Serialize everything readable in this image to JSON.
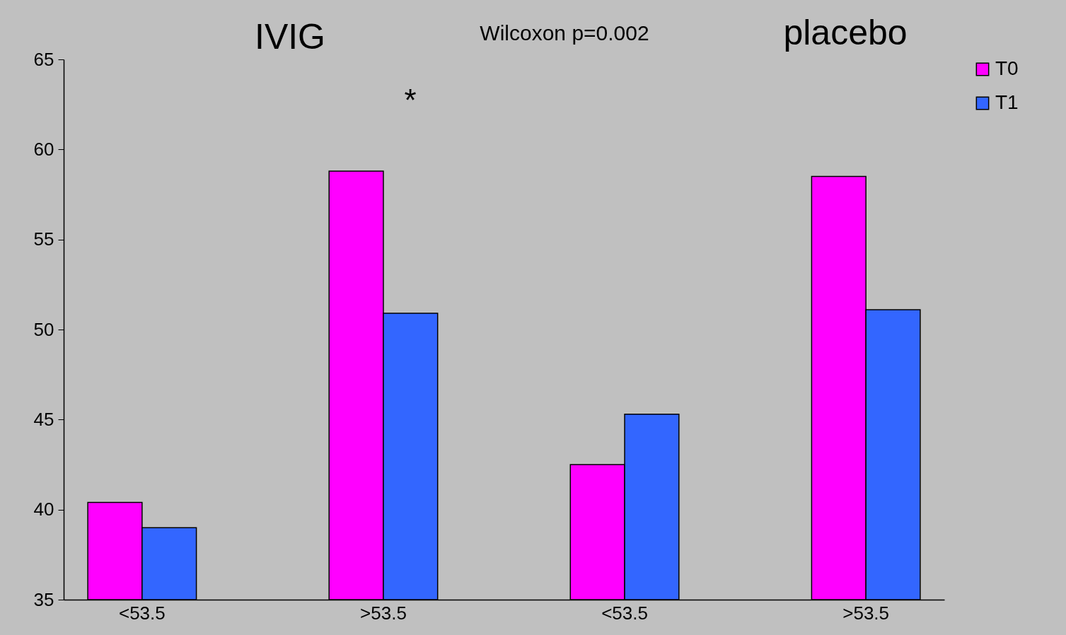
{
  "chart_data": {
    "type": "bar",
    "categories": [
      "<53.5",
      ">53.5",
      "<53.5",
      ">53.5"
    ],
    "series": [
      {
        "name": "T0",
        "color": "#ff00ff",
        "values": [
          40.4,
          58.8,
          42.5,
          58.5
        ]
      },
      {
        "name": "T1",
        "color": "#3366ff",
        "values": [
          39.0,
          50.9,
          45.3,
          51.1
        ]
      }
    ],
    "ylim": [
      35,
      65
    ],
    "yticks": [
      35,
      40,
      45,
      50,
      55,
      60,
      65
    ],
    "grid": false,
    "legend": "right",
    "annotations": [
      "IVIG",
      "Wilcoxon p=0.002",
      "placebo",
      "*"
    ]
  }
}
